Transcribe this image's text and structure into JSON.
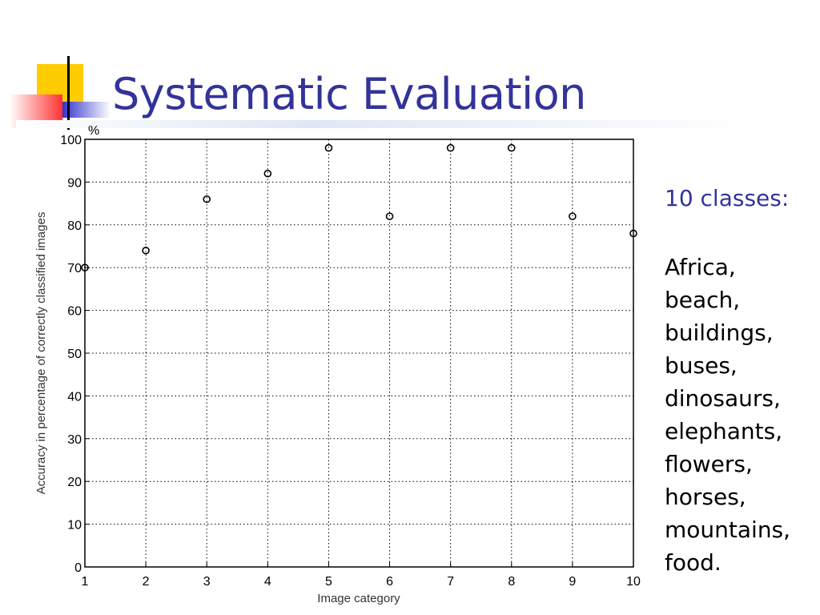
{
  "slide": {
    "title": "Systematic Evaluation",
    "classes_heading": "10 classes:",
    "classes": [
      "Africa,",
      "beach,",
      "buildings,",
      "buses,",
      "dinosaurs,",
      "elephants,",
      "flowers,",
      "horses,",
      "mountains,",
      "food."
    ],
    "colors": {
      "title": "#33339a",
      "accent_yellow": "#ffcc00",
      "accent_red": "#ff3333",
      "accent_blue": "#3333cc"
    }
  },
  "chart_data": {
    "type": "scatter",
    "unit_label": "%",
    "xlabel": "Image category",
    "ylabel": "Accuracy in percentage of correctly classified images",
    "x": [
      1,
      2,
      3,
      4,
      5,
      6,
      7,
      8,
      9,
      10
    ],
    "y": [
      70,
      74,
      86,
      92,
      98,
      82,
      98,
      98,
      82,
      78
    ],
    "xlim": [
      1,
      10
    ],
    "ylim": [
      0,
      100
    ],
    "xticks": [
      "1",
      "2",
      "3",
      "4",
      "5",
      "6",
      "7",
      "8",
      "9",
      "10"
    ],
    "yticks": [
      "0",
      "10",
      "20",
      "30",
      "40",
      "50",
      "60",
      "70",
      "80",
      "90",
      "100"
    ],
    "grid": true,
    "marker": "open-circle"
  }
}
